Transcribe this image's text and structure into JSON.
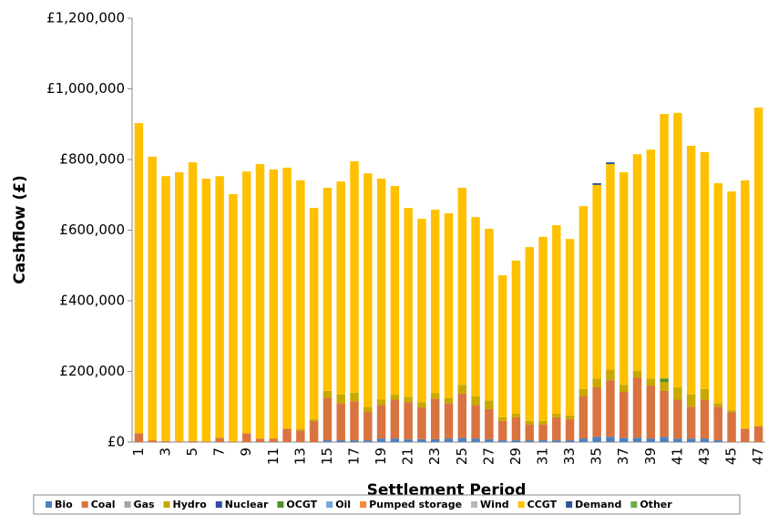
{
  "chart_data": {
    "type": "stacked-bar",
    "x_label": "Settlement Period",
    "y_label": "Cashflow (£)",
    "categories": [
      1,
      null,
      3,
      null,
      5,
      null,
      7,
      null,
      9,
      null,
      11,
      null,
      13,
      null,
      15,
      null,
      17,
      null,
      19,
      null,
      21,
      null,
      23,
      null,
      25,
      null,
      27,
      null,
      29,
      null,
      31,
      null,
      33,
      null,
      35,
      null,
      37,
      null,
      39,
      null,
      41,
      null,
      43,
      null,
      45,
      null,
      47
    ],
    "ylim": [
      0,
      1200000
    ],
    "yticks": [
      {
        "value": 0,
        "label": "£0"
      },
      {
        "value": 200000,
        "label": "£200,000"
      },
      {
        "value": 400000,
        "label": "£400,000"
      },
      {
        "value": 600000,
        "label": "£600,000"
      },
      {
        "value": 800000,
        "label": "£800,000"
      },
      {
        "value": 1000000,
        "label": "£1,000,000"
      },
      {
        "value": 1200000,
        "label": "£1,200,000"
      }
    ],
    "grid": false,
    "legend": "bottom",
    "series": [
      {
        "name": "Bio",
        "color": "#4f81bd",
        "values": [
          0,
          0,
          0,
          0,
          0,
          0,
          0,
          0,
          0,
          0,
          0,
          0,
          0,
          0,
          5000,
          5000,
          5000,
          5000,
          10000,
          10000,
          8000,
          8000,
          8000,
          10000,
          12000,
          10000,
          8000,
          5000,
          5000,
          5000,
          5000,
          5000,
          5000,
          10000,
          15000,
          15000,
          12000,
          12000,
          10000,
          15000,
          10000,
          10000,
          10000,
          5000,
          0,
          0,
          0
        ]
      },
      {
        "name": "Coal",
        "color": "#d9733f",
        "values": [
          25000,
          5000,
          3000,
          2000,
          3000,
          2000,
          12000,
          2000,
          25000,
          10000,
          10000,
          38000,
          32000,
          60000,
          120000,
          105000,
          110000,
          80000,
          95000,
          110000,
          105000,
          90000,
          115000,
          100000,
          125000,
          95000,
          85000,
          55000,
          65000,
          45000,
          45000,
          65000,
          60000,
          120000,
          140000,
          160000,
          130000,
          170000,
          150000,
          130000,
          110000,
          90000,
          110000,
          95000,
          85000,
          38000,
          45000
        ]
      },
      {
        "name": "Gas",
        "color": "#a5a5a5",
        "values": [
          0,
          0,
          0,
          0,
          0,
          0,
          0,
          0,
          0,
          0,
          0,
          0,
          0,
          0,
          0,
          0,
          0,
          0,
          0,
          0,
          0,
          0,
          0,
          0,
          0,
          0,
          0,
          0,
          0,
          0,
          0,
          0,
          0,
          0,
          0,
          0,
          0,
          0,
          0,
          0,
          0,
          0,
          0,
          0,
          0,
          0,
          0
        ]
      },
      {
        "name": "Hydro",
        "color": "#c9a800",
        "values": [
          0,
          0,
          0,
          0,
          0,
          0,
          0,
          0,
          0,
          0,
          0,
          0,
          5000,
          5000,
          20000,
          25000,
          25000,
          15000,
          15000,
          15000,
          15000,
          15000,
          15000,
          15000,
          25000,
          25000,
          25000,
          10000,
          10000,
          10000,
          10000,
          10000,
          10000,
          20000,
          25000,
          30000,
          20000,
          20000,
          20000,
          25000,
          35000,
          35000,
          30000,
          10000,
          5000,
          0,
          0
        ]
      },
      {
        "name": "Nuclear",
        "color": "#2e4d9c",
        "values": [
          0,
          0,
          0,
          0,
          0,
          0,
          0,
          0,
          0,
          0,
          0,
          0,
          0,
          0,
          0,
          0,
          0,
          0,
          0,
          0,
          0,
          0,
          0,
          0,
          0,
          0,
          0,
          0,
          0,
          0,
          0,
          0,
          0,
          0,
          0,
          0,
          0,
          0,
          0,
          0,
          0,
          0,
          0,
          0,
          0,
          0,
          0
        ]
      },
      {
        "name": "OCGT",
        "color": "#4e8f2e",
        "values": [
          0,
          0,
          0,
          0,
          0,
          0,
          0,
          0,
          0,
          0,
          0,
          0,
          0,
          0,
          0,
          0,
          0,
          0,
          0,
          0,
          0,
          0,
          0,
          0,
          0,
          0,
          0,
          0,
          0,
          0,
          0,
          0,
          0,
          0,
          0,
          0,
          0,
          0,
          0,
          10000,
          0,
          0,
          0,
          0,
          0,
          0,
          0
        ]
      },
      {
        "name": "Oil",
        "color": "#6fa8dc",
        "values": [
          0,
          0,
          0,
          0,
          0,
          0,
          0,
          0,
          0,
          0,
          0,
          0,
          0,
          0,
          0,
          0,
          0,
          0,
          0,
          0,
          0,
          0,
          0,
          0,
          0,
          0,
          0,
          0,
          0,
          0,
          0,
          0,
          0,
          0,
          0,
          0,
          0,
          0,
          0,
          0,
          0,
          0,
          0,
          0,
          0,
          0,
          0
        ]
      },
      {
        "name": "Pumped storage",
        "color": "#f08a3c",
        "values": [
          0,
          0,
          0,
          0,
          0,
          0,
          0,
          0,
          0,
          0,
          0,
          0,
          0,
          0,
          0,
          0,
          0,
          0,
          0,
          0,
          0,
          0,
          0,
          0,
          0,
          0,
          0,
          0,
          0,
          0,
          0,
          0,
          0,
          0,
          0,
          0,
          0,
          0,
          0,
          0,
          0,
          0,
          0,
          0,
          0,
          0,
          0
        ]
      },
      {
        "name": "Wind",
        "color": "#b8b8b8",
        "values": [
          0,
          0,
          0,
          0,
          0,
          0,
          0,
          0,
          0,
          0,
          0,
          0,
          0,
          0,
          0,
          0,
          0,
          0,
          0,
          0,
          0,
          0,
          0,
          0,
          0,
          0,
          0,
          0,
          0,
          0,
          0,
          0,
          0,
          0,
          0,
          0,
          0,
          0,
          0,
          0,
          0,
          0,
          0,
          0,
          0,
          0,
          0
        ]
      },
      {
        "name": "CCGT",
        "color": "#ffc000",
        "values": [
          878000,
          803000,
          750000,
          762000,
          789000,
          744000,
          741000,
          700000,
          741000,
          777000,
          762000,
          739000,
          704000,
          598000,
          575000,
          603000,
          655000,
          661000,
          626000,
          590000,
          535000,
          519000,
          520000,
          523000,
          558000,
          507000,
          486000,
          402000,
          434000,
          492000,
          521000,
          534000,
          500000,
          518000,
          548000,
          582000,
          602000,
          613000,
          648000,
          749000,
          777000,
          704000,
          671000,
          623000,
          620000,
          703000,
          902000
        ]
      },
      {
        "name": "Demand",
        "color": "#2f5597",
        "values": [
          0,
          0,
          0,
          0,
          0,
          0,
          0,
          0,
          0,
          0,
          0,
          0,
          0,
          0,
          0,
          0,
          0,
          0,
          0,
          0,
          0,
          0,
          0,
          0,
          0,
          0,
          0,
          0,
          0,
          0,
          0,
          0,
          0,
          0,
          5000,
          5000,
          0,
          0,
          0,
          0,
          0,
          0,
          0,
          0,
          0,
          0,
          0
        ]
      },
      {
        "name": "Other",
        "color": "#70ad47",
        "values": [
          0,
          0,
          0,
          0,
          0,
          0,
          0,
          0,
          0,
          0,
          0,
          0,
          0,
          0,
          0,
          0,
          0,
          0,
          0,
          0,
          0,
          0,
          0,
          0,
          0,
          0,
          0,
          0,
          0,
          0,
          0,
          0,
          0,
          0,
          0,
          0,
          0,
          0,
          0,
          0,
          0,
          0,
          0,
          0,
          0,
          0,
          0
        ]
      }
    ]
  }
}
